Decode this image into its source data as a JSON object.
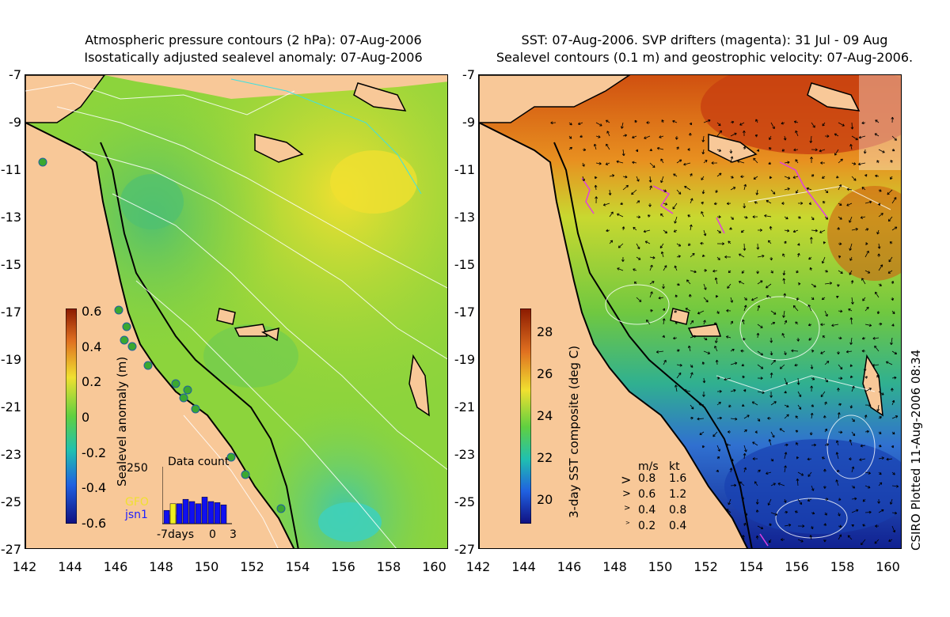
{
  "left_panel": {
    "title_line1": "Atmospheric pressure contours (2 hPa): 07-Aug-2006",
    "title_line2": "Isostatically adjusted sealevel anomaly: 07-Aug-2006",
    "colorbar_label": "Sealevel anomaly (m)",
    "colorbar_ticks": [
      "0.6",
      "0.4",
      "0.2",
      "0",
      "-0.2",
      "-0.4",
      "-0.6"
    ],
    "data_count": {
      "title": "Data count",
      "ymax_label": "250",
      "series1": "GFO",
      "series2": "jsn1",
      "xlabel_left": "-7days",
      "xlabel_mid": "0",
      "xlabel_right": "3",
      "gfo_values": [
        0,
        90,
        0,
        0,
        0,
        0,
        0,
        0,
        0,
        0
      ],
      "jsn1_values": [
        60,
        40,
        90,
        110,
        100,
        90,
        120,
        100,
        95,
        85
      ]
    }
  },
  "right_panel": {
    "title_line1": "SST: 07-Aug-2006. SVP drifters (magenta): 31 Jul - 09 Aug",
    "title_line2": "Sealevel contours (0.1 m) and geostrophic velocity: 07-Aug-2006.",
    "colorbar_label": "3-day SST composite (deg C)",
    "colorbar_ticks": [
      "28",
      "26",
      "24",
      "22",
      "20"
    ],
    "velocity_legend": {
      "header_ms": "m/s",
      "header_kt": "kt",
      "rows": [
        {
          "ms": "0.8",
          "kt": "1.6"
        },
        {
          "ms": "0.6",
          "kt": "1.2"
        },
        {
          "ms": "0.4",
          "kt": "0.8"
        },
        {
          "ms": "0.2",
          "kt": "0.4"
        }
      ]
    },
    "plotted_note": "CSIRO Plotted 11-Aug-2006 08:34"
  },
  "axes": {
    "y_ticks": [
      "-7",
      "-9",
      "-11",
      "-13",
      "-15",
      "-17",
      "-19",
      "-21",
      "-23",
      "-25",
      "-27"
    ],
    "x_ticks": [
      "142",
      "144",
      "146",
      "148",
      "150",
      "152",
      "154",
      "156",
      "158",
      "160"
    ]
  },
  "colors": {
    "land": "#f8c898",
    "sea_low": "#00a8a0",
    "sea_mid": "#7cd43c",
    "sea_high": "#e8e830",
    "sst_warm": "#d04010",
    "sst_cool": "#1030c0"
  }
}
